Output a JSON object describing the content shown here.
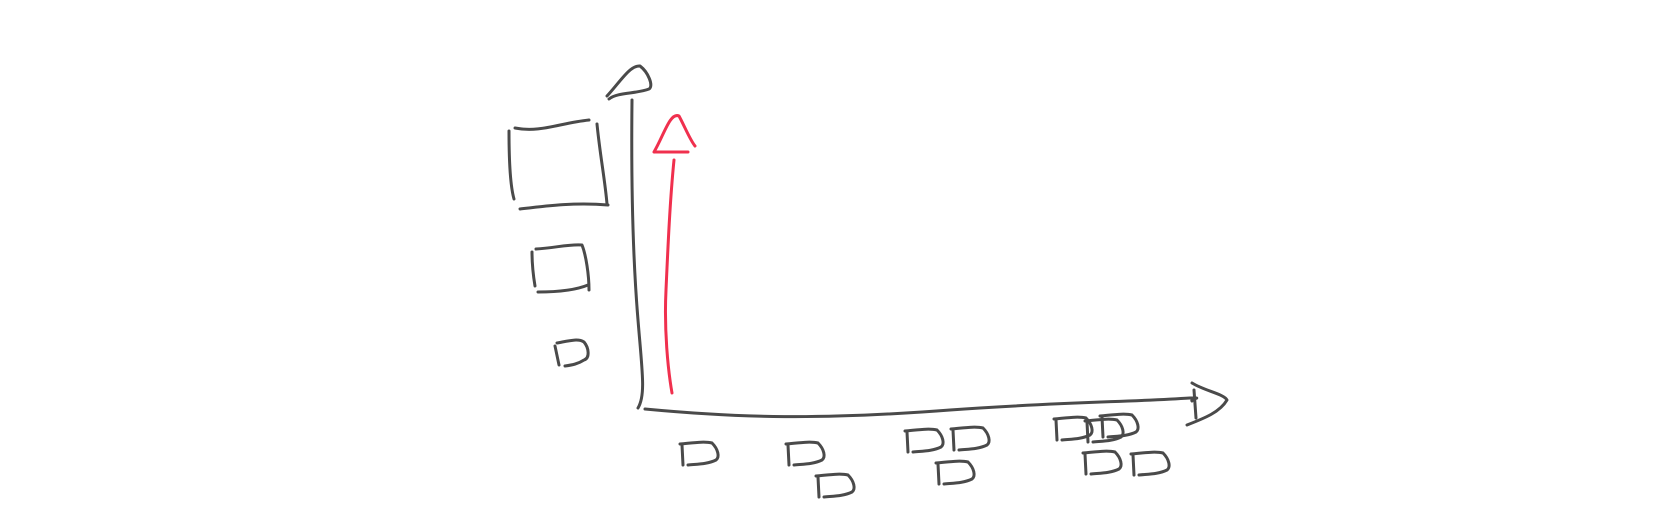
{
  "diagram": {
    "style": "hand-drawn sketch",
    "colors": {
      "ink": "#4a4a4a",
      "accent": "#f0304e",
      "background": "#ffffff"
    },
    "axes": {
      "x_arrow": true,
      "y_arrow": true
    },
    "y_axis_markers": {
      "shape": "square",
      "count": 3,
      "sizes": [
        "large",
        "medium",
        "small"
      ]
    },
    "x_axis_groups": [
      {
        "shape": "d",
        "count": 1
      },
      {
        "shape": "d",
        "count": 2
      },
      {
        "shape": "d",
        "count": 3
      },
      {
        "shape": "d",
        "count": 5
      }
    ],
    "highlight_arrow": {
      "direction": "up",
      "color": "#f0304e"
    }
  }
}
